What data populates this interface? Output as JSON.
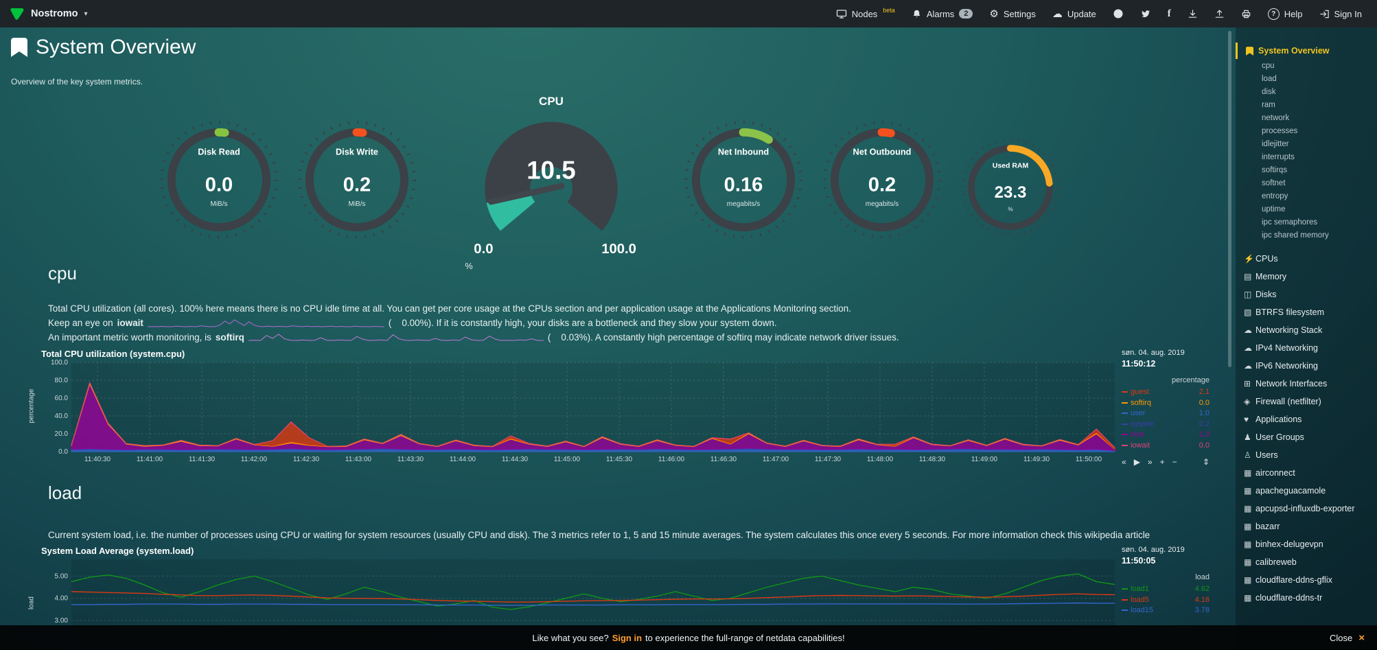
{
  "theme": {
    "accent_yellow": "#f0c420",
    "orange": "#ff9d2e",
    "brand_green": "#00c23c",
    "gauge_teal": "#31bda0"
  },
  "topbar": {
    "brand": "Nostromo",
    "nodes": "Nodes",
    "nodes_beta": "beta",
    "alarms": "Alarms",
    "alarms_badge": "2",
    "settings": "Settings",
    "update": "Update",
    "help": "Help",
    "signin": "Sign In"
  },
  "icons": {
    "caret": "▾",
    "gear": "⚙",
    "cloud": "☁",
    "facebook": "f",
    "help": "?",
    "close": "×",
    "bolt": "⚡",
    "memory": "▤",
    "disks": "◫",
    "btrfs": "▧",
    "net_cloud": "☁",
    "interfaces": "⊞",
    "firewall": "◈",
    "applications": "♥",
    "user_groups": "♟",
    "users": "♙",
    "app_grid": "▦",
    "toolbar_back": "«",
    "toolbar_play": "▶",
    "toolbar_forward": "»",
    "toolbar_zoom_in": "+",
    "toolbar_zoom_out": "−",
    "toolbar_resize": "⇕"
  },
  "page": {
    "title": "System Overview",
    "subtitle": "Overview of the key system metrics."
  },
  "gauges": [
    {
      "label": "Disk Read",
      "value": "0.0",
      "unit": "MiB/s",
      "color": "#86c440",
      "arc_pct": 2
    },
    {
      "label": "Disk Write",
      "value": "0.2",
      "unit": "MiB/s",
      "color": "#f4511e",
      "arc_pct": 2
    },
    {
      "label": "Net Inbound",
      "value": "0.16",
      "unit": "megabits/s",
      "color": "#8bc34a",
      "arc_pct": 9
    },
    {
      "label": "Net Outbound",
      "value": "0.2",
      "unit": "megabits/s",
      "color": "#f4511e",
      "arc_pct": 3
    },
    {
      "label": "Used RAM",
      "value": "23.3",
      "unit": "%",
      "color": "#f9a825",
      "arc_pct": 23.3
    }
  ],
  "cpu_gauge": {
    "title": "CPU",
    "value": "10.5",
    "min": "0.0",
    "max": "100.0",
    "unit": "%",
    "fraction": 0.105,
    "fill_color": "#31bda0"
  },
  "sections": {
    "cpu": {
      "heading": "cpu",
      "desc1": "Total CPU utilization (all cores). 100% here means there is no CPU idle time at all. You can get per core usage at the CPUs section and per application usage at the Applications Monitoring section.",
      "desc2_pre": "Keep an eye on",
      "desc2_bold": "iowait",
      "desc2_post": "(    0.00%). If it is constantly high, your disks are a bottleneck and they slow your system down.",
      "desc3_pre": "An important metric worth monitoring, is",
      "desc3_bold": "softirq",
      "desc3_post": "(    0.03%). A constantly high percentage of softirq may indicate network driver issues."
    },
    "load": {
      "heading": "load",
      "desc": "Current system load, i.e. the number of processes using CPU or waiting for system resources (usually CPU and disk). The 3 metrics refer to 1, 5 and 15 minute averages. The system calculates this once every 5 seconds. For more information check this wikipedia article"
    }
  },
  "sidebar": {
    "active": "System Overview",
    "submenu": [
      "cpu",
      "load",
      "disk",
      "ram",
      "network",
      "processes",
      "idlejitter",
      "interrupts",
      "softirqs",
      "softnet",
      "entropy",
      "uptime",
      "ipc semaphores",
      "ipc shared memory"
    ],
    "sections": [
      "CPUs",
      "Memory",
      "Disks",
      "BTRFS filesystem",
      "Networking Stack",
      "IPv4 Networking",
      "IPv6 Networking",
      "Network Interfaces",
      "Firewall (netfilter)",
      "Applications",
      "User Groups",
      "Users",
      "airconnect",
      "apacheguacamole",
      "apcupsd-influxdb-exporter",
      "bazarr",
      "binhex-delugevpn",
      "calibreweb",
      "cloudflare-ddns-gflix",
      "cloudflare-ddns-tr"
    ]
  },
  "bottom_bar": {
    "text_pre": "Like what you see?",
    "text_link": "Sign in",
    "text_post": "to experience the full-range of netdata capabilities!",
    "close": "Close"
  },
  "chart_data": [
    {
      "id": "cpu-chart",
      "type": "stacked",
      "title": "Total CPU utilization (system.cpu)",
      "ylabel": "percentage",
      "ymin": 0,
      "ymax": 100,
      "yticks": [
        {
          "v": 0,
          "t": "0.0"
        },
        {
          "v": 20,
          "t": "20.0"
        },
        {
          "v": 40,
          "t": "40.0"
        },
        {
          "v": 60,
          "t": "60.0"
        },
        {
          "v": 80,
          "t": "80.0"
        },
        {
          "v": 100,
          "t": "100.0"
        }
      ],
      "xticks": [
        "11:40:30",
        "11:41:00",
        "11:41:30",
        "11:42:00",
        "11:42:30",
        "11:43:00",
        "11:43:30",
        "11:44:00",
        "11:44:30",
        "11:45:00",
        "11:45:30",
        "11:46:00",
        "11:46:30",
        "11:47:00",
        "11:47:30",
        "11:48:00",
        "11:48:30",
        "11:49:00",
        "11:49:30",
        "11:50:00"
      ],
      "series": [
        {
          "name": "user",
          "color": "#3366CC",
          "values": [
            2,
            2.5,
            2,
            1.8,
            2.2,
            2,
            1.7,
            2.1,
            2.4,
            2,
            1.8,
            2.2,
            2.6,
            2,
            1.8,
            2,
            2.3,
            2.8,
            2.2,
            1.9,
            2,
            2.4,
            2,
            1.8,
            2.1,
            2.5,
            2,
            2.2,
            1.9,
            2,
            2.3,
            2,
            2.6,
            2.2,
            1.9,
            2,
            2.4,
            2.9,
            2.3,
            2,
            2.2,
            1.9,
            2,
            2.5,
            2,
            2.2,
            1.9,
            2.1,
            2.4,
            2.6,
            2,
            2.2,
            1.9,
            2.3,
            2,
            1.8,
            2.2,
            1
          ]
        },
        {
          "name": "system",
          "color": "#3B3EAC",
          "values": [
            0.8,
            1.2,
            0.9,
            0.7,
            0.8,
            1,
            0.8,
            0.7,
            0.9,
            1.1,
            0.8,
            0.7,
            1,
            0.9,
            0.7,
            0.8,
            1,
            1.2,
            0.9,
            0.8,
            0.7,
            0.9,
            0.8,
            0.7,
            0.8,
            1,
            0.8,
            0.9,
            0.7,
            0.8,
            1,
            0.8,
            0.9,
            0.8,
            0.7,
            0.8,
            1,
            1.1,
            0.9,
            0.8,
            0.8,
            0.7,
            0.8,
            0.9,
            0.8,
            0.8,
            0.7,
            0.8,
            0.9,
            1,
            0.8,
            0.8,
            0.7,
            0.9,
            0.8,
            0.7,
            0.8,
            0.2
          ]
        },
        {
          "name": "nice",
          "color": "#990099",
          "values": [
            4,
            72,
            28,
            6,
            3,
            4,
            9,
            4,
            3,
            11,
            5,
            3,
            6,
            4,
            3,
            3,
            10,
            5,
            15,
            6,
            3,
            9,
            4,
            3,
            11,
            5,
            3,
            8,
            3,
            13,
            5,
            3,
            9,
            4,
            3,
            12,
            5,
            16,
            6,
            3,
            9,
            4,
            3,
            10,
            5,
            3,
            13,
            5,
            3,
            9,
            4,
            11,
            5,
            3,
            10,
            5,
            17,
            1.3
          ]
        },
        {
          "name": "softirq",
          "color": "#FF9900",
          "values": [
            0.5,
            1.5,
            1,
            0.5,
            0.8,
            0.5,
            1.2,
            0.5,
            0.4,
            0.8,
            0.5,
            0.4,
            1.5,
            0.6,
            0.4,
            0.5,
            0.9,
            0.5,
            1.2,
            0.5,
            0.4,
            0.8,
            0.5,
            0.4,
            0.9,
            0.5,
            0.4,
            0.7,
            0.4,
            1,
            0.5,
            0.4,
            0.8,
            0.5,
            0.4,
            0.9,
            0.5,
            1.1,
            0.5,
            0.4,
            0.8,
            0.4,
            0.4,
            0.9,
            0.5,
            0.4,
            1,
            0.5,
            0.4,
            0.8,
            0.4,
            0.9,
            0.5,
            0.4,
            0.8,
            0.5,
            1.2,
            0
          ]
        },
        {
          "name": "guest",
          "color": "#DC3912",
          "values": [
            0,
            0,
            0,
            0,
            0,
            0,
            0,
            0,
            0,
            0,
            0,
            6,
            22,
            8,
            0,
            0,
            0,
            0,
            0,
            0,
            0,
            0,
            0,
            0,
            3,
            0,
            0,
            0,
            0,
            0,
            0,
            0,
            0,
            0,
            0,
            0,
            5,
            0,
            0,
            0,
            0,
            0,
            0,
            0,
            0,
            2,
            0,
            0,
            0,
            0,
            0,
            0,
            0,
            0,
            0,
            0,
            4,
            2.1
          ]
        },
        {
          "name": "iowait",
          "color": "#DD4477",
          "values": [
            0,
            0,
            0.3,
            0,
            0,
            0,
            0,
            0.2,
            0,
            0,
            0,
            0,
            0.4,
            0,
            0,
            0,
            0,
            0,
            0.2,
            0,
            0,
            0,
            0,
            0,
            0,
            0.3,
            0,
            0,
            0,
            0,
            0.2,
            0,
            0,
            0,
            0,
            0,
            0.3,
            0,
            0,
            0,
            0,
            0.2,
            0,
            0,
            0,
            0,
            0,
            0.2,
            0,
            0,
            0,
            0,
            0.3,
            0,
            0,
            0,
            0.2,
            0
          ]
        }
      ],
      "legend": {
        "date": "søn. 04. aug. 2019",
        "time": "11:50:12",
        "unit": "percentage",
        "rows": [
          {
            "name": "guest",
            "value": "2.1",
            "color": "#DC3912"
          },
          {
            "name": "softirq",
            "value": "0.0",
            "color": "#FF9900"
          },
          {
            "name": "user",
            "value": "1.0",
            "color": "#3366CC"
          },
          {
            "name": "system",
            "value": "0.2",
            "color": "#3B3EAC"
          },
          {
            "name": "nice",
            "value": "1.3",
            "color": "#990099"
          },
          {
            "name": "iowait",
            "value": "0.0",
            "color": "#DD4477"
          }
        ]
      }
    },
    {
      "id": "load-chart",
      "type": "lines",
      "title": "System Load Average (system.load)",
      "ylabel": "load",
      "ymin": 1.8,
      "ymax": 5.75,
      "yticks": [
        {
          "v": 3,
          "t": "3.00"
        },
        {
          "v": 4,
          "t": "4.00"
        },
        {
          "v": 5,
          "t": "5.00"
        }
      ],
      "xticks": [],
      "series": [
        {
          "name": "load1",
          "color": "#109618",
          "values": [
            4.75,
            4.95,
            5.05,
            4.9,
            4.6,
            4.25,
            4.05,
            4.3,
            4.6,
            4.85,
            5,
            4.75,
            4.45,
            4.15,
            3.95,
            4.2,
            4.5,
            4.3,
            4.05,
            3.85,
            3.65,
            3.75,
            3.9,
            3.6,
            3.5,
            3.62,
            3.8,
            4,
            4.2,
            4,
            3.85,
            3.95,
            4.1,
            4.3,
            4.1,
            3.9,
            4,
            4.25,
            4.5,
            4.7,
            4.9,
            5,
            4.8,
            4.6,
            4.45,
            4.3,
            4.5,
            4.4,
            4.2,
            4.1,
            4,
            4.2,
            4.5,
            4.8,
            5,
            5.1,
            4.75,
            4.62
          ]
        },
        {
          "name": "load5",
          "color": "#DC3912",
          "values": [
            4.3,
            4.28,
            4.26,
            4.24,
            4.22,
            4.18,
            4.15,
            4.12,
            4.12,
            4.14,
            4.15,
            4.13,
            4.1,
            4.06,
            4.02,
            4,
            4,
            3.99,
            3.97,
            3.94,
            3.9,
            3.88,
            3.87,
            3.85,
            3.83,
            3.83,
            3.85,
            3.87,
            3.89,
            3.9,
            3.9,
            3.92,
            3.94,
            3.96,
            3.97,
            3.97,
            3.98,
            4,
            4.03,
            4.06,
            4.1,
            4.12,
            4.13,
            4.12,
            4.11,
            4.1,
            4.11,
            4.1,
            4.08,
            4.06,
            4.05,
            4.07,
            4.1,
            4.14,
            4.18,
            4.2,
            4.17,
            4.16
          ]
        },
        {
          "name": "load15",
          "color": "#3366CC",
          "values": [
            3.72,
            3.72,
            3.73,
            3.73,
            3.74,
            3.74,
            3.74,
            3.73,
            3.73,
            3.74,
            3.74,
            3.74,
            3.73,
            3.73,
            3.72,
            3.72,
            3.72,
            3.72,
            3.71,
            3.71,
            3.7,
            3.7,
            3.7,
            3.69,
            3.69,
            3.69,
            3.7,
            3.7,
            3.7,
            3.7,
            3.71,
            3.71,
            3.71,
            3.72,
            3.72,
            3.72,
            3.72,
            3.73,
            3.73,
            3.74,
            3.74,
            3.75,
            3.75,
            3.75,
            3.75,
            3.75,
            3.75,
            3.75,
            3.74,
            3.74,
            3.74,
            3.75,
            3.76,
            3.77,
            3.78,
            3.79,
            3.78,
            3.78
          ]
        }
      ],
      "legend": {
        "date": "søn. 04. aug. 2019",
        "time": "11:50:05",
        "unit": "load",
        "rows": [
          {
            "name": "load1",
            "value": "4.62",
            "color": "#109618"
          },
          {
            "name": "load5",
            "value": "4.16",
            "color": "#DC3912"
          },
          {
            "name": "load15",
            "value": "3.78",
            "color": "#3366CC"
          }
        ]
      }
    },
    {
      "id": "spark-iowait",
      "type": "sparkline",
      "color": "#b06bd4",
      "values": [
        0,
        0.05,
        0,
        0.1,
        0,
        0,
        0.2,
        0.05,
        0,
        0.1,
        0,
        0.3,
        0.1,
        0,
        0.05,
        0.6,
        1.8,
        0.9,
        2.2,
        1.2,
        0.4,
        1.6,
        0.5,
        0.1,
        0,
        0.2,
        0,
        0.1,
        0.05,
        0,
        0.3,
        0.1,
        0,
        0.2,
        0,
        0.1,
        0,
        0.05,
        0.2,
        0,
        0.1,
        0,
        0,
        0.15,
        0,
        0.05,
        0,
        0.1,
        0,
        0
      ]
    },
    {
      "id": "spark-softirq",
      "type": "sparkline",
      "color": "#c07ad4",
      "values": [
        0.03,
        0.04,
        0.03,
        0.25,
        0.12,
        0.3,
        0.1,
        0.04,
        0.03,
        0.05,
        0.03,
        0.04,
        0.15,
        0.04,
        0.03,
        0.05,
        0.04,
        0.03,
        0.2,
        0.08,
        0.03,
        0.04,
        0.05,
        0.03,
        0.28,
        0.1,
        0.04,
        0.03,
        0.05,
        0.04,
        0.03,
        0.12,
        0.04,
        0.03,
        0.05,
        0.03,
        0.18,
        0.06,
        0.03,
        0.04,
        0.22,
        0.08,
        0.03,
        0.04,
        0.03,
        0.05,
        0.04,
        0.1,
        0.03,
        0.03
      ]
    }
  ]
}
